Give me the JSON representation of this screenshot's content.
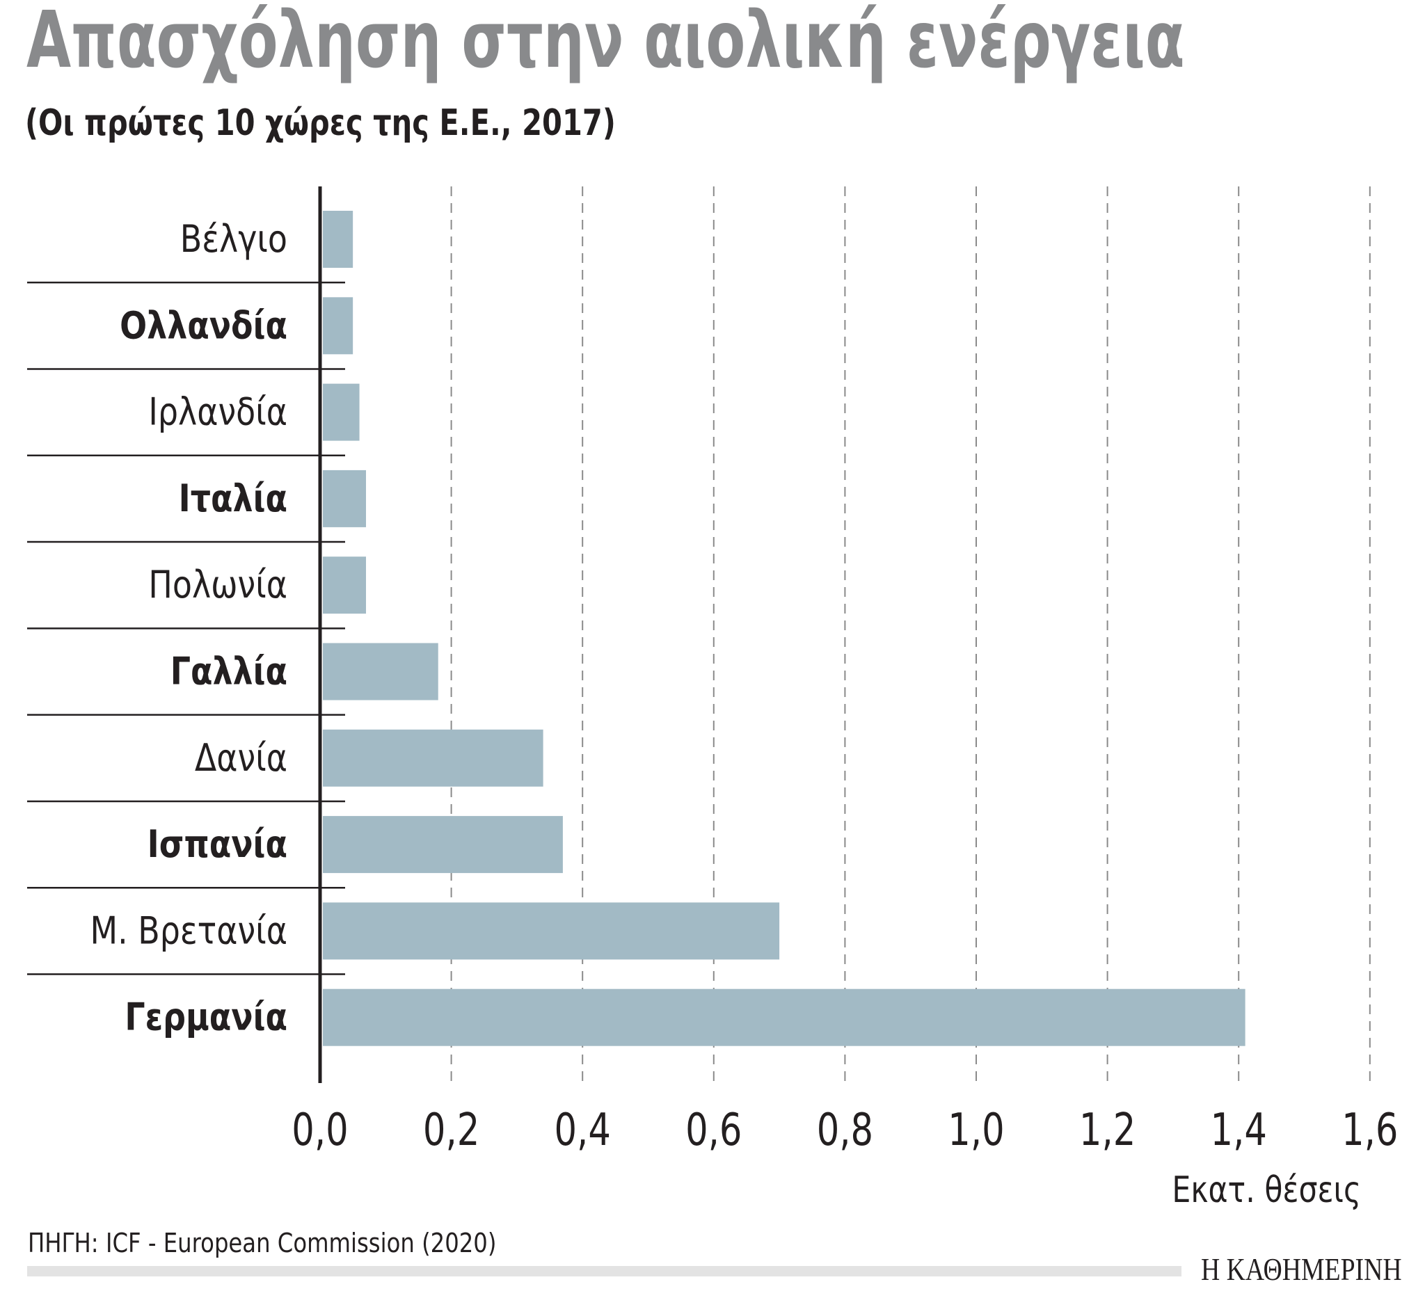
{
  "title": "Απασχόληση στην αιολική ενέργεια",
  "subtitle": "(Οι πρώτες 10 χώρες της Ε.Ε., 2017)",
  "source": "ΠΗΓΗ: ICF - European Commission (2020)",
  "logo": "Η ΚΑΘΗΜΕΡΙΝΗ",
  "colors": {
    "bar": "#a2bac5",
    "title": "#898a8c",
    "text": "#231f20",
    "grid": "#8a8a8a",
    "footer_bar": "#e3e3e3"
  },
  "chart_data": {
    "type": "bar",
    "orientation": "horizontal",
    "title": "Απασχόληση στην αιολική ενέργεια",
    "subtitle": "(Οι πρώτες 10 χώρες της Ε.Ε., 2017)",
    "xlabel": "Εκατ. θέσεις",
    "ylabel": "",
    "xlim": [
      0,
      1.6
    ],
    "xticks": [
      "0,0",
      "0,2",
      "0,4",
      "0,6",
      "0,8",
      "1,0",
      "1,2",
      "1,4",
      "1,6"
    ],
    "grid": "vertical dashed",
    "categories": [
      "Βέλγιο",
      "Ολλανδία",
      "Ιρλανδία",
      "Ιταλία",
      "Πολωνία",
      "Γαλλία",
      "Δανία",
      "Ισπανία",
      "Μ. Βρετανία",
      "Γερμανία"
    ],
    "bold_labels": [
      false,
      true,
      false,
      true,
      false,
      true,
      false,
      true,
      false,
      true
    ],
    "values": [
      0.05,
      0.05,
      0.06,
      0.07,
      0.07,
      0.18,
      0.34,
      0.37,
      0.7,
      1.41
    ]
  }
}
